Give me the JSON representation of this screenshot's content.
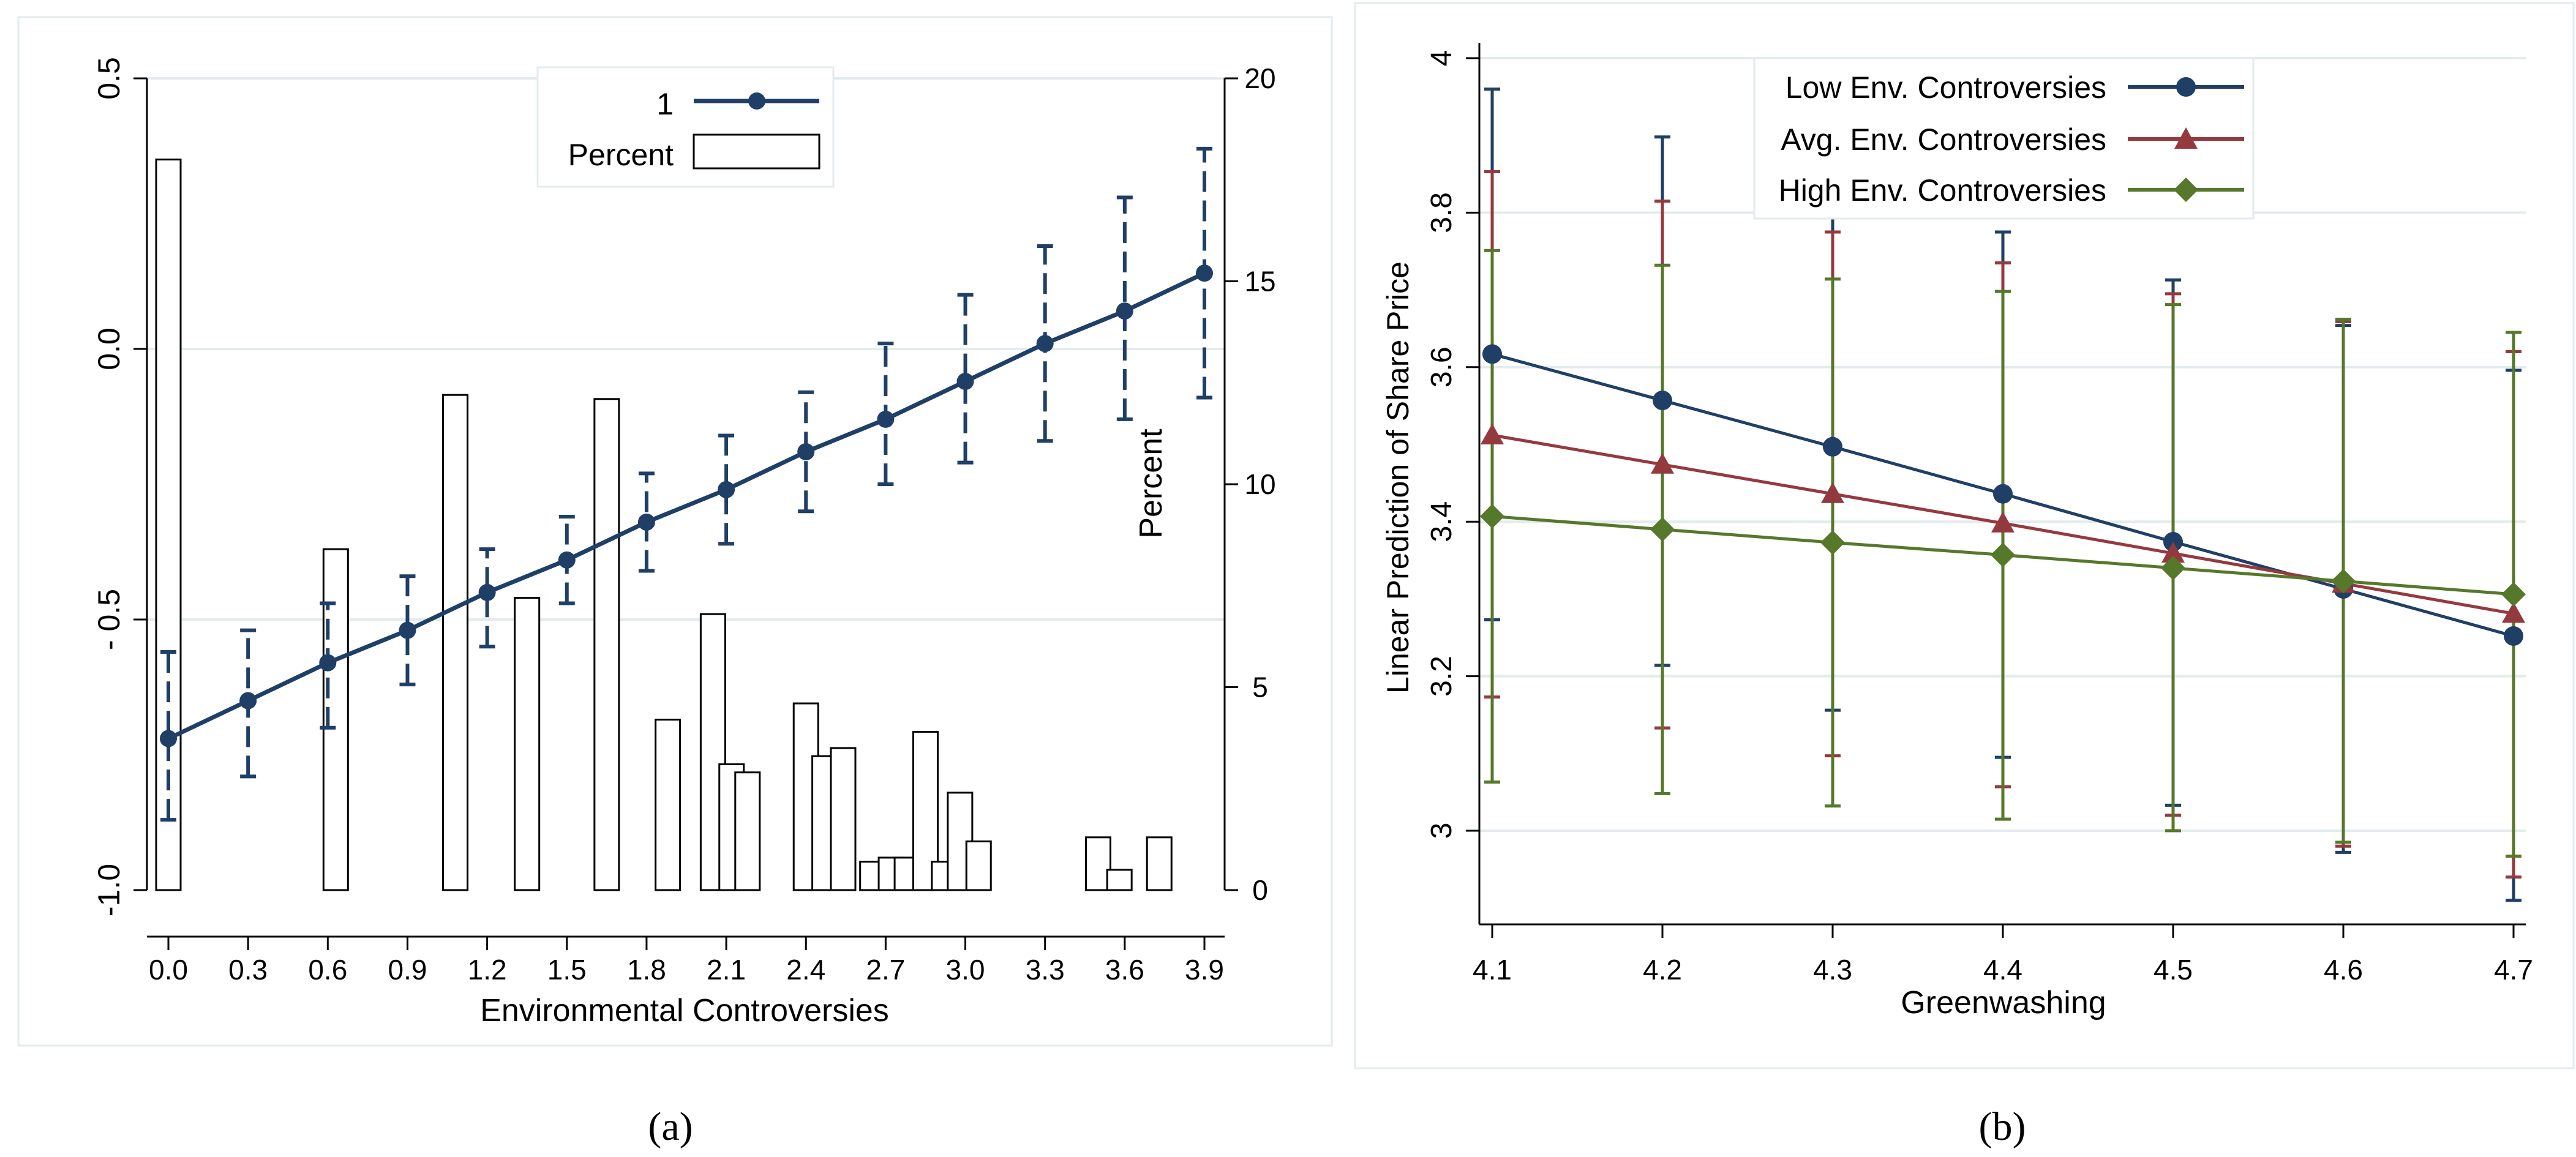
{
  "chart_data": [
    {
      "id": "a",
      "type": "bar+line",
      "caption": "(a)",
      "xlabel": "Environmental Controversies",
      "ylabel_left": "",
      "ylabel_right": "Percent",
      "x_ticks": [
        0.0,
        0.3,
        0.6,
        0.9,
        1.2,
        1.5,
        1.8,
        2.1,
        2.4,
        2.7,
        3.0,
        3.3,
        3.6,
        3.9
      ],
      "x_tick_labels": [
        "0.0",
        "0.3",
        "0.6",
        "0.9",
        "1.2",
        "1.5",
        "1.8",
        "2.1",
        "2.4",
        "2.7",
        "3.0",
        "3.3",
        "3.6",
        "3.9"
      ],
      "xlim": [
        -0.1,
        4.0
      ],
      "y_left_ticks": [
        0.5,
        0.0,
        -0.5,
        -1.0
      ],
      "y_left_tick_labels": [
        "0.5",
        "0.0",
        "- 0.5",
        "-1.0"
      ],
      "y_left_lim": [
        -1.0,
        0.5
      ],
      "y_right_ticks": [
        0,
        5,
        10,
        15,
        20
      ],
      "y_right_tick_labels": [
        "0",
        "5",
        "10",
        "15",
        "20"
      ],
      "y_right_lim": [
        0,
        20
      ],
      "legend": [
        {
          "label": "1",
          "kind": "line-marker",
          "color": "#1f3f66"
        },
        {
          "label": "Percent",
          "kind": "bar",
          "color": "#000000"
        }
      ],
      "line_series": {
        "name": "1",
        "color": "#1f3f66",
        "x": [
          0.0,
          0.3,
          0.6,
          0.9,
          1.2,
          1.5,
          1.8,
          2.1,
          2.4,
          2.7,
          3.0,
          3.3,
          3.6,
          3.9
        ],
        "y": [
          -0.72,
          -0.65,
          -0.58,
          -0.52,
          -0.45,
          -0.39,
          -0.32,
          -0.26,
          -0.19,
          -0.13,
          -0.06,
          0.01,
          0.07,
          0.14
        ],
        "ci_low": [
          -0.87,
          -0.79,
          -0.7,
          -0.62,
          -0.55,
          -0.47,
          -0.41,
          -0.36,
          -0.3,
          -0.25,
          -0.21,
          -0.17,
          -0.13,
          -0.09
        ],
        "ci_high": [
          -0.56,
          -0.52,
          -0.47,
          -0.42,
          -0.37,
          -0.31,
          -0.23,
          -0.16,
          -0.08,
          0.01,
          0.1,
          0.19,
          0.28,
          0.37
        ]
      },
      "bars": {
        "name": "Percent",
        "x": [
          0.0,
          0.63,
          1.08,
          1.35,
          1.65,
          1.88,
          2.05,
          2.12,
          2.18,
          2.4,
          2.47,
          2.54,
          2.65,
          2.72,
          2.78,
          2.85,
          2.92,
          2.98,
          3.05,
          3.5,
          3.58,
          3.73
        ],
        "values": [
          18.0,
          8.4,
          12.2,
          7.2,
          12.1,
          4.2,
          6.8,
          3.1,
          2.9,
          4.6,
          3.3,
          3.5,
          0.7,
          0.8,
          0.8,
          3.9,
          0.7,
          2.4,
          1.2,
          1.3,
          0.5,
          1.3
        ]
      }
    },
    {
      "id": "b",
      "type": "line",
      "caption": "(b)",
      "xlabel": "Greenwashing",
      "ylabel": "Linear Prediction of Share Price",
      "x_ticks": [
        4.1,
        4.2,
        4.3,
        4.4,
        4.5,
        4.6,
        4.7
      ],
      "x_tick_labels": [
        "4.1",
        "4.2",
        "4.3",
        "4.4",
        "4.5",
        "4.6",
        "4.7"
      ],
      "xlim": [
        4.1,
        4.7
      ],
      "y_ticks": [
        3.0,
        3.2,
        3.4,
        3.6,
        3.8,
        4.0
      ],
      "y_tick_labels": [
        "3",
        "3.2",
        "3.4",
        "3.6",
        "3.8",
        "4"
      ],
      "ylim": [
        2.9,
        4.0
      ],
      "legend": [
        {
          "label": "Low Env. Controversies",
          "marker": "circle",
          "color": "#1f3f66"
        },
        {
          "label": "Avg. Env. Controversies",
          "marker": "triangle",
          "color": "#943a3f"
        },
        {
          "label": "High Env. Controversies",
          "marker": "diamond",
          "color": "#55782a"
        }
      ],
      "x": [
        4.1,
        4.2,
        4.3,
        4.4,
        4.5,
        4.6,
        4.7
      ],
      "series": [
        {
          "name": "Low Env. Controversies",
          "color": "#1f3f66",
          "marker": "circle",
          "values": [
            3.617,
            3.557,
            3.497,
            3.436,
            3.374,
            3.313,
            3.252
          ],
          "ci_low": [
            3.273,
            3.214,
            3.156,
            3.095,
            3.033,
            2.972,
            2.91
          ],
          "ci_high": [
            3.96,
            3.898,
            3.838,
            3.775,
            3.713,
            3.654,
            3.596
          ]
        },
        {
          "name": "Avg. Env. Controversies",
          "color": "#943a3f",
          "marker": "triangle",
          "values": [
            3.512,
            3.474,
            3.436,
            3.398,
            3.359,
            3.32,
            3.281
          ],
          "ci_low": [
            3.173,
            3.133,
            3.097,
            3.057,
            3.02,
            2.98,
            2.94
          ],
          "ci_high": [
            3.853,
            3.815,
            3.775,
            3.735,
            3.695,
            3.659,
            3.62
          ]
        },
        {
          "name": "High Env. Controversies",
          "color": "#55782a",
          "marker": "diamond",
          "values": [
            3.407,
            3.39,
            3.373,
            3.357,
            3.34,
            3.323,
            3.306
          ],
          "ci_low": [
            3.063,
            3.048,
            3.032,
            3.015,
            3.0,
            2.985,
            2.967
          ],
          "ci_high": [
            3.751,
            3.732,
            3.714,
            3.698,
            3.681,
            3.662,
            3.645
          ]
        }
      ]
    }
  ]
}
